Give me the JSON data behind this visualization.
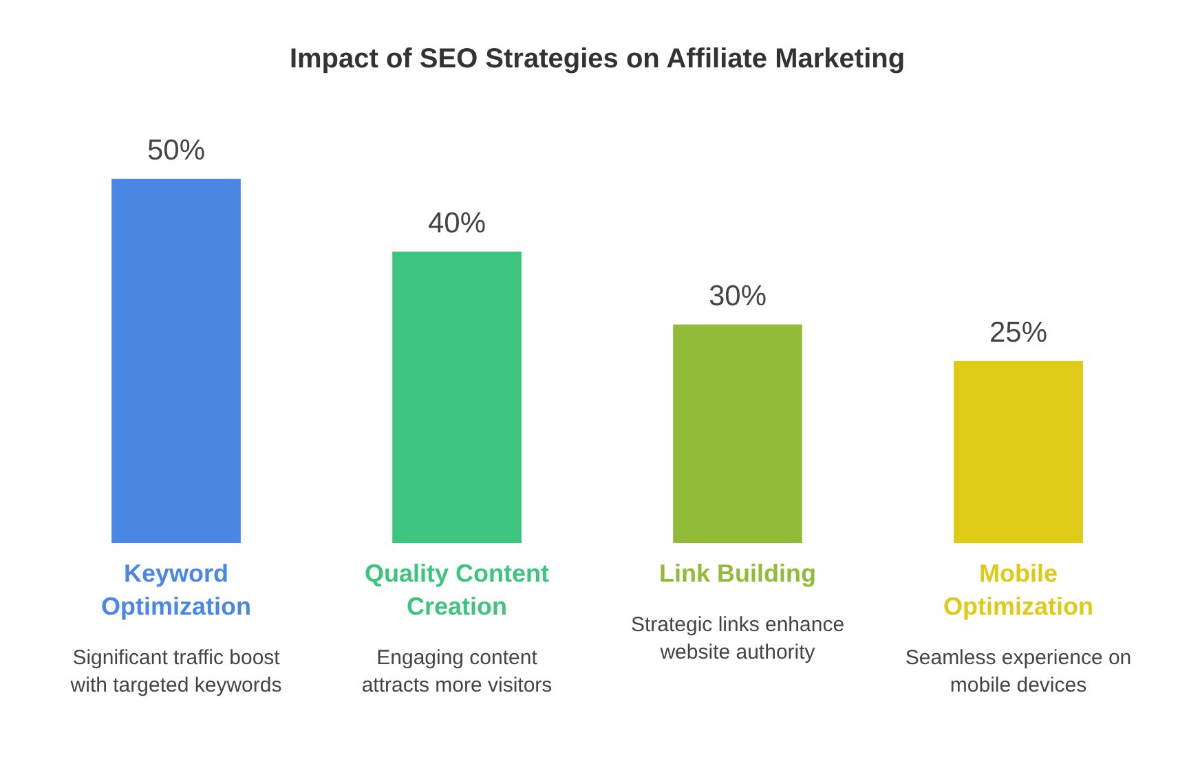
{
  "chart_data": {
    "type": "bar",
    "title": "Impact of SEO Strategies on Affiliate Marketing",
    "categories": [
      "Keyword Optimization",
      "Quality Content Creation",
      "Link Building",
      "Mobile Optimization"
    ],
    "values": [
      50,
      40,
      30,
      25
    ],
    "colors": [
      "#4a86e4",
      "#3dc47f",
      "#93bb3a",
      "#dfca17"
    ],
    "value_labels": [
      "50%",
      "40%",
      "30%",
      "25%"
    ],
    "tick_labels": "x",
    "annotations": [
      "Significant traffic boost with targeted keywords",
      "Engaging content attracts more visitors",
      "Strategic links enhance website authority",
      "Seamless experience on mobile devices"
    ]
  }
}
